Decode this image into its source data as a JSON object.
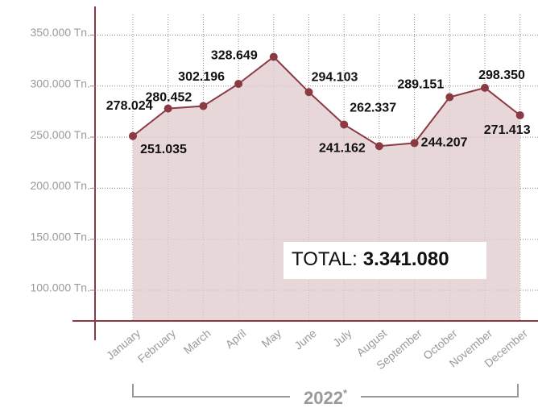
{
  "chart_data": {
    "type": "area",
    "categories": [
      "January",
      "February",
      "March",
      "April",
      "May",
      "June",
      "July",
      "August",
      "September",
      "October",
      "November",
      "December"
    ],
    "values": [
      251035,
      278024,
      280452,
      302196,
      328649,
      294103,
      262337,
      241162,
      244207,
      289151,
      298350,
      271413
    ],
    "value_labels": [
      "251.035",
      "278.024",
      "280.452",
      "302.196",
      "328.649",
      "294.103",
      "262.337",
      "241.162",
      "244.207",
      "289.151",
      "298.350",
      "271.413"
    ],
    "color": "#8b3a44",
    "fill_color": "#e2cdd0",
    "ylim": [
      70000,
      378000
    ],
    "yticks": [
      {
        "value": 100000,
        "label": "100.000 Tn."
      },
      {
        "value": 150000,
        "label": "150.000 Tn."
      },
      {
        "value": 200000,
        "label": "200.000 Tn."
      },
      {
        "value": 250000,
        "label": "250.000 Tn."
      },
      {
        "value": 300000,
        "label": "300.000 Tn."
      },
      {
        "value": 350000,
        "label": "350.000 Tn."
      }
    ],
    "grid": true,
    "total_label": "TOTAL:",
    "total": {
      "value": 3341080,
      "label": "3.341.080"
    },
    "xlabel": "2022",
    "xlabel_note": "*"
  }
}
